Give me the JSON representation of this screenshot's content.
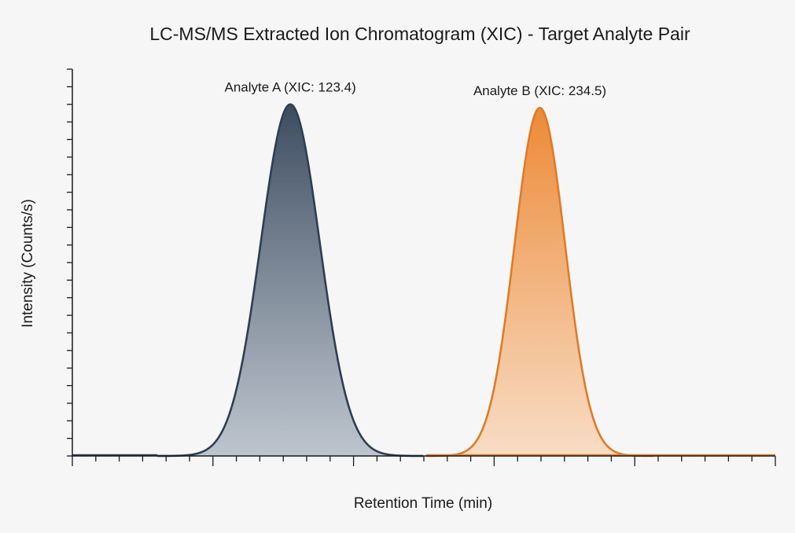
{
  "chart_data": {
    "type": "area",
    "title": "LC-MS/MS Extracted Ion Chromatogram (XIC) - Target Analyte Pair",
    "xlabel": "Retention Time (min)",
    "ylabel": "Intensity (Counts/s)",
    "x_tick_labels": [],
    "y_tick_labels": [],
    "xlim": [
      0,
      10
    ],
    "ylim": [
      0,
      1.1
    ],
    "grid": false,
    "legend": "none",
    "series": [
      {
        "label": "Analyte A (XIC: 123.4)",
        "apex_x": 3.1,
        "apex_y": 1.0,
        "sigma": 0.42,
        "color": "#2e3f52"
      },
      {
        "label": "Analyte B (XIC: 234.5)",
        "apex_x": 6.65,
        "apex_y": 0.99,
        "sigma": 0.36,
        "color": "#e07b27"
      }
    ]
  }
}
